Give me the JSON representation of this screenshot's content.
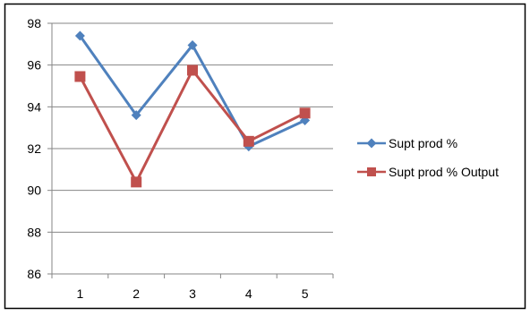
{
  "chart_data": {
    "type": "line",
    "categories": [
      "1",
      "2",
      "3",
      "4",
      "5"
    ],
    "series": [
      {
        "name": "Supt prod %",
        "values": [
          97.4,
          93.6,
          96.95,
          92.1,
          93.35
        ],
        "color": "#4F81BD",
        "marker": "diamond"
      },
      {
        "name": "Supt prod % Output",
        "values": [
          95.45,
          90.4,
          95.75,
          92.35,
          93.7
        ],
        "color": "#C0504D",
        "marker": "square"
      }
    ],
    "title": "",
    "xlabel": "",
    "ylabel": "",
    "ylim": [
      86,
      98
    ],
    "yticks": [
      "86",
      "88",
      "90",
      "92",
      "94",
      "96",
      "98"
    ],
    "grid": true,
    "legend": "right"
  }
}
